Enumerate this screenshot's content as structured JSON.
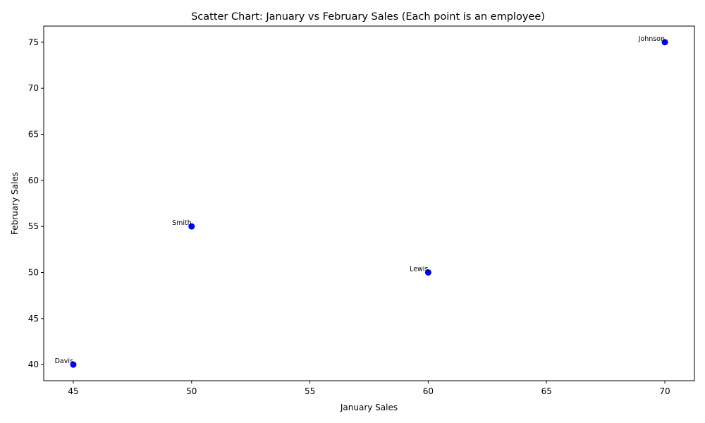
{
  "chart_data": {
    "type": "scatter",
    "title": "Scatter Chart: January vs February Sales (Each point is an employee)",
    "xlabel": "January Sales",
    "ylabel": "February Sales",
    "xlim": [
      43.75,
      71.25
    ],
    "ylim": [
      38.25,
      76.75
    ],
    "xticks": [
      45,
      50,
      55,
      60,
      65,
      70
    ],
    "yticks": [
      40,
      45,
      50,
      55,
      60,
      65,
      70,
      75
    ],
    "grid": false,
    "point_color": "#0000ff",
    "points": [
      {
        "label": "Smith",
        "x": 50,
        "y": 55
      },
      {
        "label": "Johnson",
        "x": 70,
        "y": 75
      },
      {
        "label": "Lewis",
        "x": 60,
        "y": 50
      },
      {
        "label": "Davis",
        "x": 45,
        "y": 40
      }
    ]
  }
}
